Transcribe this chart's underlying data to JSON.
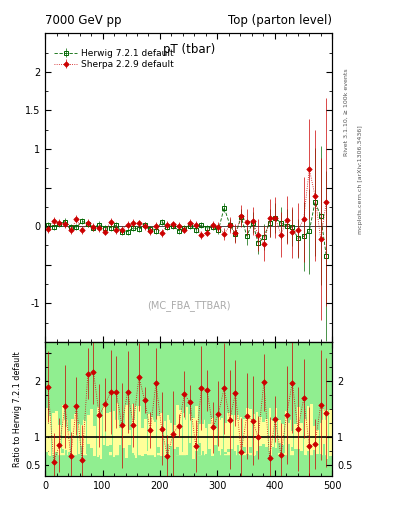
{
  "title_left": "7000 GeV pp",
  "title_right": "Top (parton level)",
  "plot_title": "pT (tbar)",
  "watermark": "(MC_FBA_TTBAR)",
  "right_label_top": "Rivet 3.1.10, ≥ 100k events",
  "right_label_bottom": "mcplots.cern.ch [arXiv:1306.3436]",
  "ylabel_ratio": "Ratio to Herwig 7.2.1 default",
  "xlim": [
    0,
    500
  ],
  "ylim_main": [
    -1.5,
    2.5
  ],
  "ylim_ratio": [
    0.3,
    2.7
  ],
  "herwig_color": "#006600",
  "sherpa_color": "#cc0000",
  "legend_herwig": "Herwig 7.2.1 default",
  "legend_sherpa": "Sherpa 2.2.9 default",
  "n_points": 50,
  "seed": 42,
  "green_band": "#90EE90",
  "yellow_band": "#FFFF99"
}
